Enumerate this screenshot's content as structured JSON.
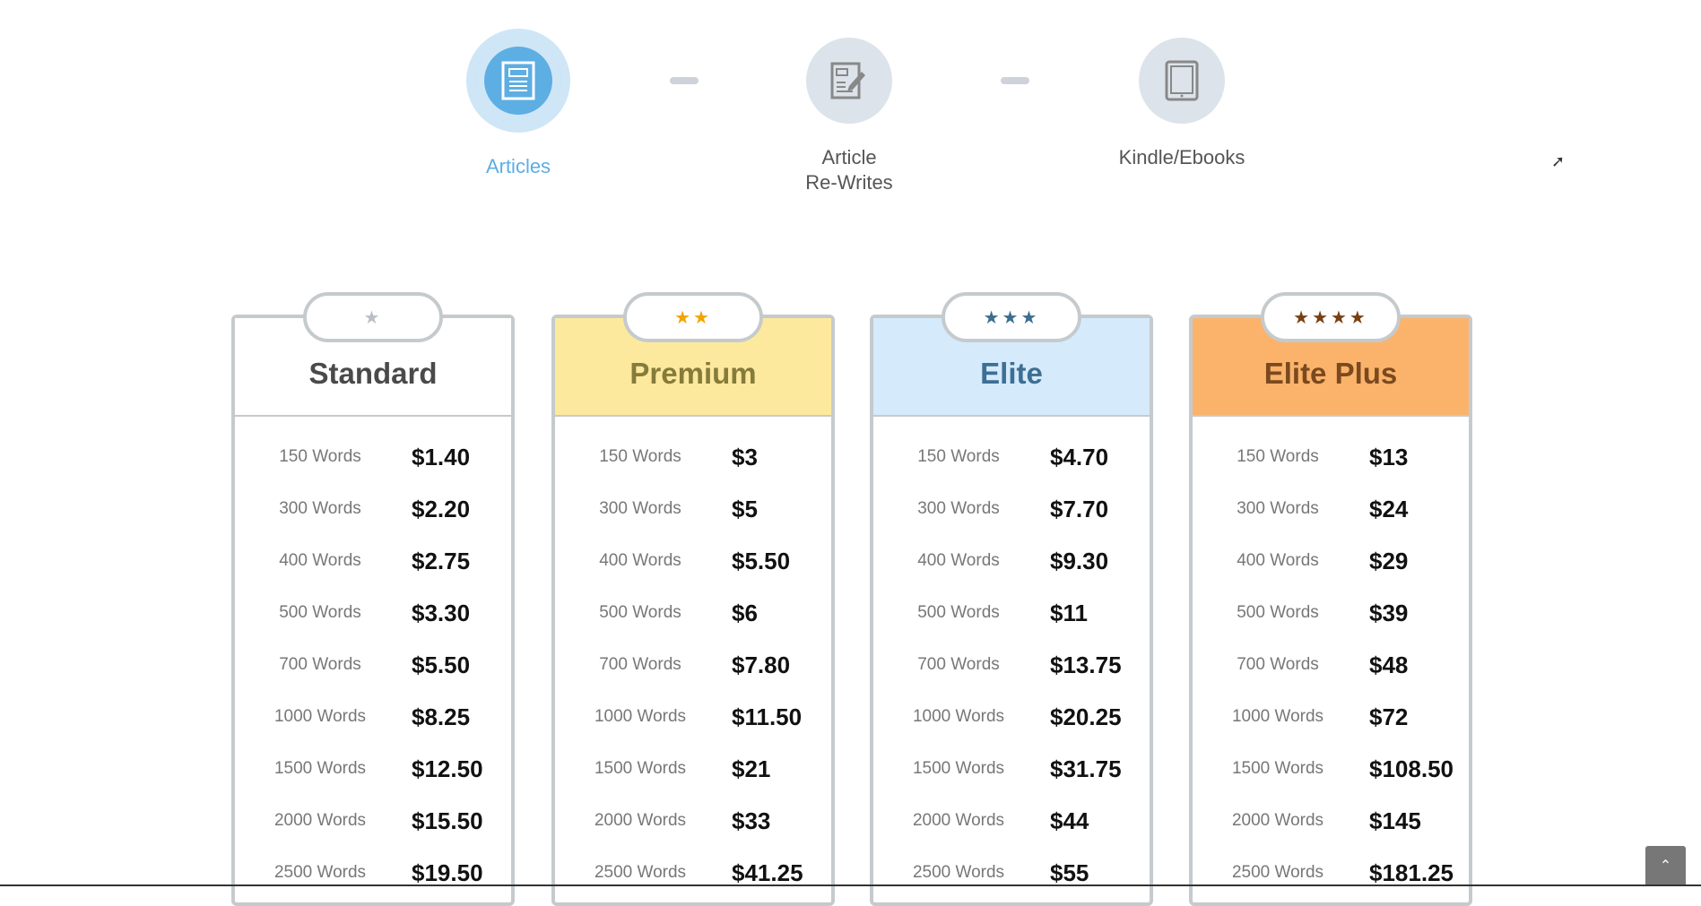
{
  "steps": [
    {
      "label": "Articles",
      "icon": "article-icon",
      "active": true
    },
    {
      "label": "Article\nRe-Writes",
      "icon": "edit-document-icon",
      "active": false
    },
    {
      "label": "Kindle/Ebooks",
      "icon": "tablet-icon",
      "active": false
    }
  ],
  "plans": [
    {
      "name": "Standard",
      "stars": "★",
      "header_color": "#ffffff",
      "title_color": "#4a4a4a",
      "star_color": "#b9bfc4",
      "rows": [
        [
          "150 Words",
          "$1.40"
        ],
        [
          "300 Words",
          "$2.20"
        ],
        [
          "400 Words",
          "$2.75"
        ],
        [
          "500 Words",
          "$3.30"
        ],
        [
          "700 Words",
          "$5.50"
        ],
        [
          "1000 Words",
          "$8.25"
        ],
        [
          "1500 Words",
          "$12.50"
        ],
        [
          "2000 Words",
          "$15.50"
        ],
        [
          "2500 Words",
          "$19.50"
        ]
      ]
    },
    {
      "name": "Premium",
      "stars": "★★",
      "header_color": "#fde99d",
      "title_color": "#857b3b",
      "star_color": "#f5a300",
      "rows": [
        [
          "150 Words",
          "$3"
        ],
        [
          "300 Words",
          "$5"
        ],
        [
          "400 Words",
          "$5.50"
        ],
        [
          "500 Words",
          "$6"
        ],
        [
          "700 Words",
          "$7.80"
        ],
        [
          "1000 Words",
          "$11.50"
        ],
        [
          "1500 Words",
          "$21"
        ],
        [
          "2000 Words",
          "$33"
        ],
        [
          "2500 Words",
          "$41.25"
        ]
      ]
    },
    {
      "name": "Elite",
      "stars": "★★★",
      "header_color": "#d5eafb",
      "title_color": "#3d6f94",
      "star_color": "#3b6e8f",
      "rows": [
        [
          "150 Words",
          "$4.70"
        ],
        [
          "300 Words",
          "$7.70"
        ],
        [
          "400 Words",
          "$9.30"
        ],
        [
          "500 Words",
          "$11"
        ],
        [
          "700 Words",
          "$13.75"
        ],
        [
          "1000 Words",
          "$20.25"
        ],
        [
          "1500 Words",
          "$31.75"
        ],
        [
          "2000 Words",
          "$44"
        ],
        [
          "2500 Words",
          "$55"
        ]
      ]
    },
    {
      "name": "Elite Plus",
      "stars": "★★★★",
      "header_color": "#fbb36b",
      "title_color": "#7a4a1e",
      "star_color": "#7a3f10",
      "rows": [
        [
          "150 Words",
          "$13"
        ],
        [
          "300 Words",
          "$24"
        ],
        [
          "400 Words",
          "$29"
        ],
        [
          "500 Words",
          "$39"
        ],
        [
          "700 Words",
          "$48"
        ],
        [
          "1000 Words",
          "$72"
        ],
        [
          "1500 Words",
          "$108.50"
        ],
        [
          "2000 Words",
          "$145"
        ],
        [
          "2500 Words",
          "$181.25"
        ]
      ]
    }
  ],
  "scroll_top": {
    "icon": "chevron-up-icon",
    "glyph": "⌃"
  }
}
